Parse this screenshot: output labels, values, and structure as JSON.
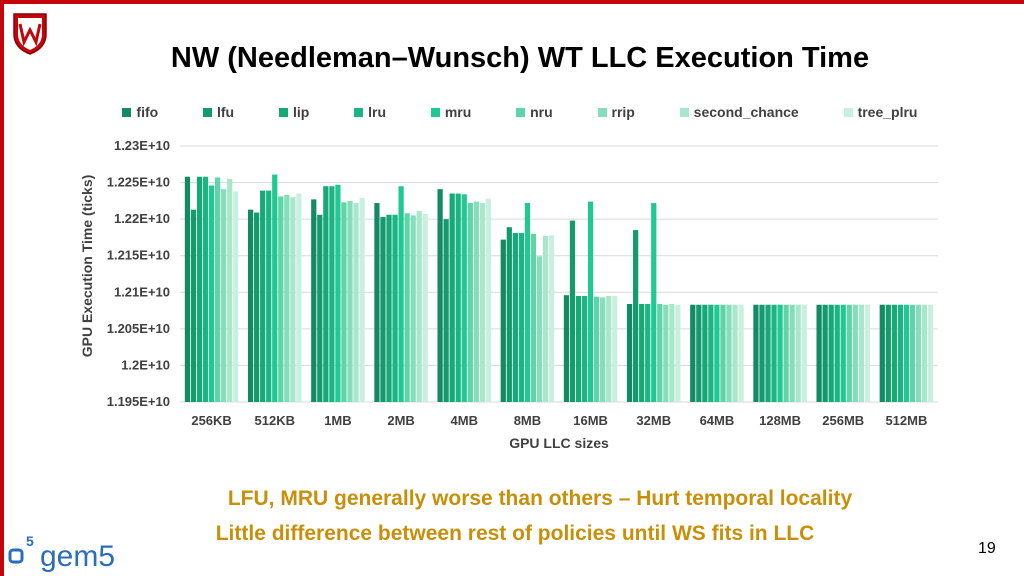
{
  "slide": {
    "title": "NW (Needleman–Wunsch) WT LLC Execution Time",
    "notes": [
      "LFU, MRU generally worse than others – Hurt temporal locality",
      "Little difference between rest of policies until WS fits in LLC"
    ],
    "page_number": "19",
    "logo_text": "gem5",
    "brand_color": "#c5050c",
    "note_color": "#c8900a"
  },
  "chart_data": {
    "type": "bar",
    "title": "",
    "xlabel": "GPU LLC sizes",
    "ylabel": "GPU Execution Time (ticks)",
    "ylim": [
      11950000000,
      12300000000
    ],
    "yticks": [
      11950000000,
      12000000000,
      12050000000,
      12100000000,
      12150000000,
      12200000000,
      12250000000,
      12300000000
    ],
    "ytick_labels": [
      "1.195E+10",
      "1.2E+10",
      "1.205E+10",
      "1.21E+10",
      "1.215E+10",
      "1.22E+10",
      "1.225E+10",
      "1.23E+10"
    ],
    "grid": true,
    "legend_position": "top",
    "categories": [
      "256KB",
      "512KB",
      "1MB",
      "2MB",
      "4MB",
      "8MB",
      "16MB",
      "32MB",
      "64MB",
      "128MB",
      "256MB",
      "512MB"
    ],
    "series": [
      {
        "name": "fifo",
        "color": "#138a63",
        "values": [
          12258000000,
          12213000000,
          12227000000,
          12222000000,
          12241000000,
          12172000000,
          12096000000,
          12084000000,
          12083000000,
          12083000000,
          12083000000,
          12083000000
        ]
      },
      {
        "name": "lfu",
        "color": "#159a6e",
        "values": [
          12213000000,
          12209000000,
          12206000000,
          12203000000,
          12200000000,
          12189000000,
          12198000000,
          12185000000,
          12083000000,
          12083000000,
          12083000000,
          12083000000
        ]
      },
      {
        "name": "lip",
        "color": "#17a878",
        "values": [
          12258000000,
          12239000000,
          12245000000,
          12206000000,
          12235000000,
          12181000000,
          12095000000,
          12084000000,
          12083000000,
          12083000000,
          12083000000,
          12083000000
        ]
      },
      {
        "name": "lru",
        "color": "#1ab583",
        "values": [
          12258000000,
          12239000000,
          12245000000,
          12206000000,
          12235000000,
          12181000000,
          12095000000,
          12084000000,
          12083000000,
          12083000000,
          12083000000,
          12083000000
        ]
      },
      {
        "name": "mru",
        "color": "#22c891",
        "values": [
          12246000000,
          12261000000,
          12247000000,
          12245000000,
          12234000000,
          12222000000,
          12224000000,
          12222000000,
          12083000000,
          12083000000,
          12083000000,
          12083000000
        ]
      },
      {
        "name": "nru",
        "color": "#5ed4a8",
        "values": [
          12257000000,
          12231000000,
          12223000000,
          12208000000,
          12222000000,
          12180000000,
          12094000000,
          12084000000,
          12083000000,
          12083000000,
          12083000000,
          12083000000
        ]
      },
      {
        "name": "rrip",
        "color": "#86ddbb",
        "values": [
          12241000000,
          12233000000,
          12225000000,
          12205000000,
          12224000000,
          12149000000,
          12093000000,
          12083000000,
          12083000000,
          12083000000,
          12083000000,
          12083000000
        ]
      },
      {
        "name": "second_chance",
        "color": "#a9e7cd",
        "values": [
          12255000000,
          12230000000,
          12222000000,
          12211000000,
          12222000000,
          12177000000,
          12095000000,
          12084000000,
          12083000000,
          12083000000,
          12083000000,
          12083000000
        ]
      },
      {
        "name": "tree_plru",
        "color": "#c9f0de",
        "values": [
          12238000000,
          12235000000,
          12229000000,
          12207000000,
          12228000000,
          12178000000,
          12095000000,
          12083000000,
          12083000000,
          12083000000,
          12083000000,
          12083000000
        ]
      }
    ]
  }
}
